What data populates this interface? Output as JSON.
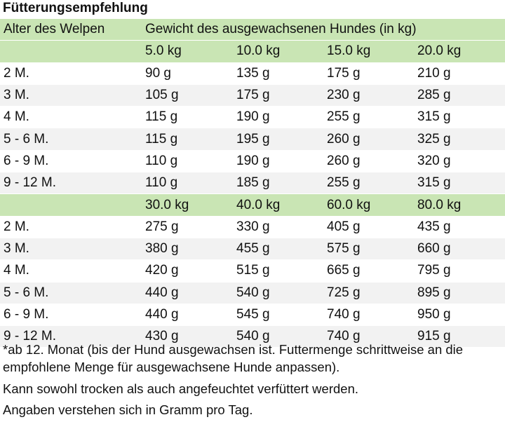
{
  "title": "Fütterungsempfehlung",
  "header": {
    "age_label": "Alter des Welpen",
    "weight_label": "Gewicht des ausgewachsenen Hundes (in kg)"
  },
  "section1": {
    "weights": [
      "5.0 kg",
      "10.0 kg",
      "15.0 kg",
      "20.0 kg"
    ],
    "rows": [
      {
        "age": "2 M.",
        "values": [
          "90 g",
          "135 g",
          "175 g",
          "210 g"
        ]
      },
      {
        "age": "3 M.",
        "values": [
          "105 g",
          "175 g",
          "230 g",
          "285 g"
        ]
      },
      {
        "age": "4 M.",
        "values": [
          "115 g",
          "190 g",
          "255 g",
          "315 g"
        ]
      },
      {
        "age": "5 - 6 M.",
        "values": [
          "115 g",
          "195 g",
          "260 g",
          "325 g"
        ]
      },
      {
        "age": "6 - 9 M.",
        "values": [
          "110 g",
          "190 g",
          "260 g",
          "320 g"
        ]
      },
      {
        "age": "9 - 12 M.",
        "values": [
          "110 g",
          "185 g",
          "255 g",
          "315 g"
        ]
      }
    ]
  },
  "section2": {
    "weights": [
      "30.0 kg",
      "40.0 kg",
      "60.0 kg",
      "80.0 kg"
    ],
    "rows": [
      {
        "age": "2 M.",
        "values": [
          "275 g",
          "330 g",
          "405 g",
          "435 g"
        ]
      },
      {
        "age": "3 M.",
        "values": [
          "380 g",
          "455 g",
          "575 g",
          "660 g"
        ]
      },
      {
        "age": "4 M.",
        "values": [
          "420 g",
          "515 g",
          "665 g",
          "795 g"
        ]
      },
      {
        "age": "5 - 6 M.",
        "values": [
          "440 g",
          "540 g",
          "725 g",
          "895 g"
        ]
      },
      {
        "age": "6 - 9 M.",
        "values": [
          "440 g",
          "545 g",
          "740 g",
          "950 g"
        ]
      },
      {
        "age": "9 - 12 M.",
        "values": [
          "430 g",
          "540 g",
          "740 g",
          "915 g"
        ]
      }
    ]
  },
  "notes": [
    "*ab 12. Monat (bis der Hund ausgewachsen ist. Futtermenge schrittweise an die empfohlene Menge für ausgewachsene Hunde anpassen).",
    "Kann sowohl trocken als auch angefeuchtet verfüttert werden.",
    "Angaben verstehen sich in Gramm pro Tag."
  ],
  "colors": {
    "header_bg": "#c9e5b4",
    "row_alt_bg": "#f2f2f2"
  }
}
